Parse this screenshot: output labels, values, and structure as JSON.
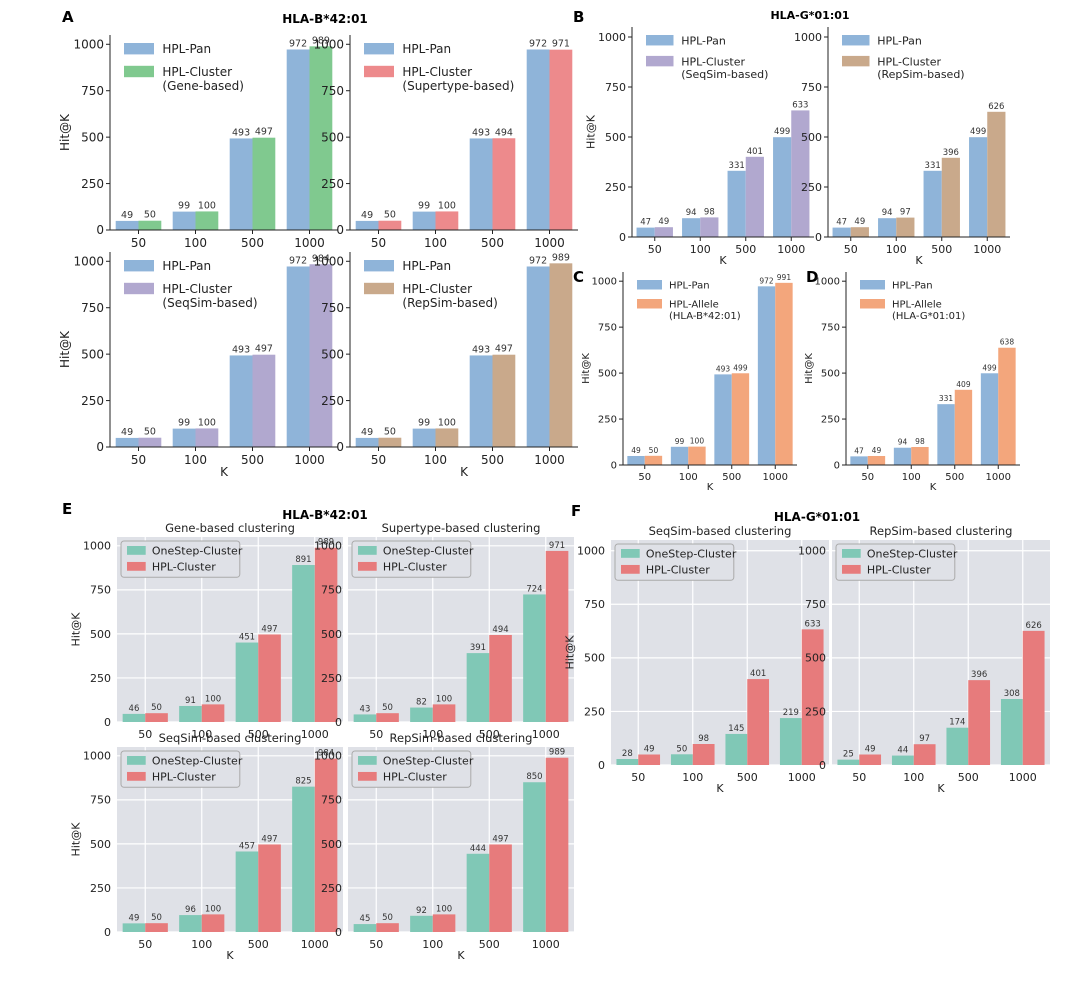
{
  "colors": {
    "pan": "#8fb4d9",
    "gene": "#80c98f",
    "supertype": "#ed8a8c",
    "seqsim": "#b1a8cf",
    "repsim": "#c9a98b",
    "allele": "#f3a67c",
    "onestep": "#80c8b6",
    "hplcluster": "#e77b7c",
    "gridbg": "#dfe1e7"
  },
  "panel_letters": [
    "A",
    "B",
    "C",
    "D",
    "E",
    "F"
  ],
  "group_titles": {
    "A": "HLA-B*42:01",
    "B": "HLA-G*01:01",
    "E": "HLA-B*42:01",
    "F": "HLA-G*01:01"
  },
  "chart_data": [
    {
      "id": "A1",
      "type": "bar",
      "categories": [
        "50",
        "100",
        "500",
        "1000"
      ],
      "series": [
        {
          "name": "HPL-Pan",
          "values": [
            49,
            99,
            493,
            972
          ]
        },
        {
          "name": "HPL-Cluster\n(Gene-based)",
          "values": [
            50,
            100,
            497,
            989
          ]
        }
      ],
      "ylabel": "Hit@K",
      "xlabel": "",
      "ylim": [
        0,
        1050
      ],
      "yticks": [
        0,
        250,
        500,
        750,
        1000
      ],
      "legend": "top-left",
      "grid": false
    },
    {
      "id": "A2",
      "type": "bar",
      "categories": [
        "50",
        "100",
        "500",
        "1000"
      ],
      "series": [
        {
          "name": "HPL-Pan",
          "values": [
            49,
            99,
            493,
            972
          ]
        },
        {
          "name": "HPL-Cluster\n(Supertype-based)",
          "values": [
            50,
            100,
            494,
            971
          ]
        }
      ],
      "ylabel": "",
      "xlabel": "",
      "ylim": [
        0,
        1050
      ],
      "yticks": [
        0,
        250,
        500,
        750,
        1000
      ],
      "legend": "top-left",
      "grid": false
    },
    {
      "id": "A3",
      "type": "bar",
      "categories": [
        "50",
        "100",
        "500",
        "1000"
      ],
      "series": [
        {
          "name": "HPL-Pan",
          "values": [
            49,
            99,
            493,
            972
          ]
        },
        {
          "name": "HPL-Cluster\n(SeqSim-based)",
          "values": [
            50,
            100,
            497,
            984
          ]
        }
      ],
      "ylabel": "Hit@K",
      "xlabel": "K",
      "ylim": [
        0,
        1050
      ],
      "yticks": [
        0,
        250,
        500,
        750,
        1000
      ],
      "legend": "top-left",
      "grid": false
    },
    {
      "id": "A4",
      "type": "bar",
      "categories": [
        "50",
        "100",
        "500",
        "1000"
      ],
      "series": [
        {
          "name": "HPL-Pan",
          "values": [
            49,
            99,
            493,
            972
          ]
        },
        {
          "name": "HPL-Cluster\n(RepSim-based)",
          "values": [
            50,
            100,
            497,
            989
          ]
        }
      ],
      "ylabel": "",
      "xlabel": "K",
      "ylim": [
        0,
        1050
      ],
      "yticks": [
        0,
        250,
        500,
        750,
        1000
      ],
      "legend": "top-left",
      "grid": false
    },
    {
      "id": "B1",
      "type": "bar",
      "categories": [
        "50",
        "100",
        "500",
        "1000"
      ],
      "series": [
        {
          "name": "HPL-Pan",
          "values": [
            47,
            94,
            331,
            499
          ]
        },
        {
          "name": "HPL-Cluster\n(SeqSim-based)",
          "values": [
            49,
            98,
            401,
            633
          ]
        }
      ],
      "ylabel": "Hit@K",
      "xlabel": "K",
      "ylim": [
        0,
        1050
      ],
      "yticks": [
        0,
        250,
        500,
        750,
        1000
      ],
      "legend": "top-left",
      "grid": false
    },
    {
      "id": "B2",
      "type": "bar",
      "categories": [
        "50",
        "100",
        "500",
        "1000"
      ],
      "series": [
        {
          "name": "HPL-Pan",
          "values": [
            47,
            94,
            331,
            499
          ]
        },
        {
          "name": "HPL-Cluster\n(RepSim-based)",
          "values": [
            49,
            97,
            396,
            626
          ]
        }
      ],
      "ylabel": "",
      "xlabel": "K",
      "ylim": [
        0,
        1050
      ],
      "yticks": [
        0,
        250,
        500,
        750,
        1000
      ],
      "legend": "top-left",
      "grid": false
    },
    {
      "id": "C",
      "type": "bar",
      "categories": [
        "50",
        "100",
        "500",
        "1000"
      ],
      "series": [
        {
          "name": "HPL-Pan",
          "values": [
            49,
            99,
            493,
            972
          ]
        },
        {
          "name": "HPL-Allele\n(HLA-B*42:01)",
          "values": [
            50,
            100,
            499,
            991
          ]
        }
      ],
      "ylabel": "Hit@K",
      "xlabel": "K",
      "ylim": [
        0,
        1050
      ],
      "yticks": [
        0,
        250,
        500,
        750,
        1000
      ],
      "legend": "top-left",
      "grid": false
    },
    {
      "id": "D",
      "type": "bar",
      "categories": [
        "50",
        "100",
        "500",
        "1000"
      ],
      "series": [
        {
          "name": "HPL-Pan",
          "values": [
            47,
            94,
            331,
            499
          ]
        },
        {
          "name": "HPL-Allele\n(HLA-G*01:01)",
          "values": [
            49,
            98,
            409,
            638
          ]
        }
      ],
      "ylabel": "Hit@K",
      "xlabel": "K",
      "ylim": [
        0,
        1050
      ],
      "yticks": [
        0,
        250,
        500,
        750,
        1000
      ],
      "legend": "top-left",
      "grid": false
    },
    {
      "id": "E1",
      "type": "bar",
      "title": "Gene-based clustering",
      "categories": [
        "50",
        "100",
        "500",
        "1000"
      ],
      "series": [
        {
          "name": "OneStep-Cluster",
          "values": [
            46,
            91,
            451,
            891
          ]
        },
        {
          "name": "HPL-Cluster",
          "values": [
            50,
            100,
            497,
            989
          ]
        }
      ],
      "ylabel": "Hit@K",
      "xlabel": "",
      "ylim": [
        0,
        1050
      ],
      "yticks": [
        0,
        250,
        500,
        750,
        1000
      ],
      "legend": "top-left",
      "grid": true
    },
    {
      "id": "E2",
      "type": "bar",
      "title": "Supertype-based clustering",
      "categories": [
        "50",
        "100",
        "500",
        "1000"
      ],
      "series": [
        {
          "name": "OneStep-Cluster",
          "values": [
            43,
            82,
            391,
            724
          ]
        },
        {
          "name": "HPL-Cluster",
          "values": [
            50,
            100,
            494,
            971
          ]
        }
      ],
      "ylabel": "",
      "xlabel": "",
      "ylim": [
        0,
        1050
      ],
      "yticks": [
        0,
        250,
        500,
        750,
        1000
      ],
      "legend": "top-left",
      "grid": true
    },
    {
      "id": "E3",
      "type": "bar",
      "title": "SeqSim-based clustering",
      "categories": [
        "50",
        "100",
        "500",
        "1000"
      ],
      "series": [
        {
          "name": "OneStep-Cluster",
          "values": [
            49,
            96,
            457,
            825
          ]
        },
        {
          "name": "HPL-Cluster",
          "values": [
            50,
            100,
            497,
            984
          ]
        }
      ],
      "ylabel": "Hit@K",
      "xlabel": "K",
      "ylim": [
        0,
        1050
      ],
      "yticks": [
        0,
        250,
        500,
        750,
        1000
      ],
      "legend": "top-left",
      "grid": true
    },
    {
      "id": "E4",
      "type": "bar",
      "title": "RepSim-based clustering",
      "categories": [
        "50",
        "100",
        "500",
        "1000"
      ],
      "series": [
        {
          "name": "OneStep-Cluster",
          "values": [
            45,
            92,
            444,
            850
          ]
        },
        {
          "name": "HPL-Cluster",
          "values": [
            50,
            100,
            497,
            989
          ]
        }
      ],
      "ylabel": "",
      "xlabel": "K",
      "ylim": [
        0,
        1050
      ],
      "yticks": [
        0,
        250,
        500,
        750,
        1000
      ],
      "legend": "top-left",
      "grid": true
    },
    {
      "id": "F1",
      "type": "bar",
      "title": "SeqSim-based clustering",
      "categories": [
        "50",
        "100",
        "500",
        "1000"
      ],
      "series": [
        {
          "name": "OneStep-Cluster",
          "values": [
            28,
            50,
            145,
            219
          ]
        },
        {
          "name": "HPL-Cluster",
          "values": [
            49,
            98,
            401,
            633
          ]
        }
      ],
      "ylabel": "Hit@K",
      "xlabel": "K",
      "ylim": [
        0,
        1050
      ],
      "yticks": [
        0,
        250,
        500,
        750,
        1000
      ],
      "legend": "top-left",
      "grid": true
    },
    {
      "id": "F2",
      "type": "bar",
      "title": "RepSim-based clustering",
      "categories": [
        "50",
        "100",
        "500",
        "1000"
      ],
      "series": [
        {
          "name": "OneStep-Cluster",
          "values": [
            25,
            44,
            174,
            308
          ]
        },
        {
          "name": "HPL-Cluster",
          "values": [
            49,
            97,
            396,
            626
          ]
        }
      ],
      "ylabel": "",
      "xlabel": "K",
      "ylim": [
        0,
        1050
      ],
      "yticks": [
        0,
        250,
        500,
        750,
        1000
      ],
      "legend": "top-left",
      "grid": true
    }
  ]
}
